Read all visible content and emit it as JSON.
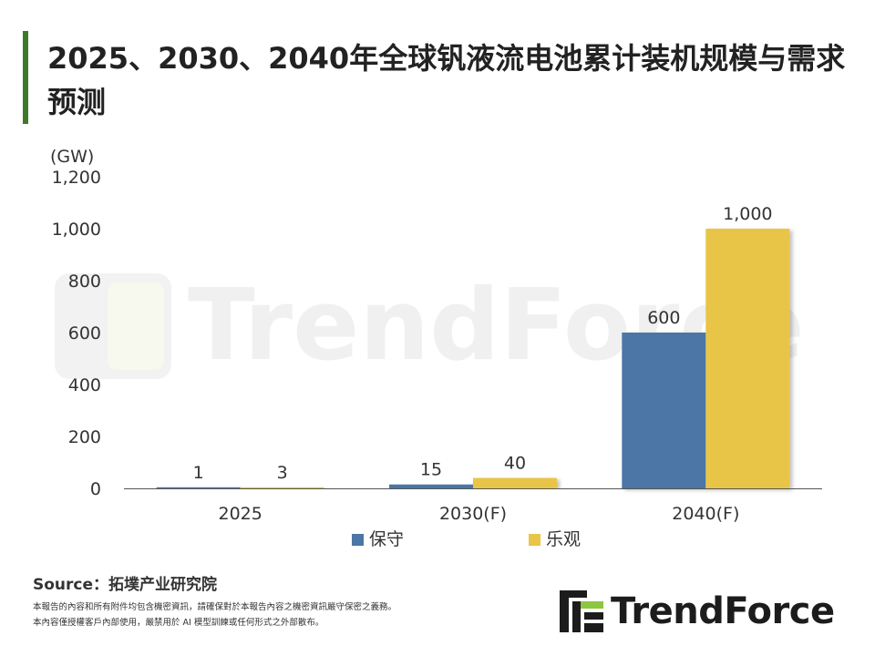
{
  "header": {
    "title": "2025、2030、2040年全球钒液流电池累计装机规模与需求预测"
  },
  "watermark": {
    "text": "TrendForce"
  },
  "colors": {
    "accent_bar": "#3f7a2b",
    "series_conservative": "#4c76a6",
    "series_optimistic": "#e8c547"
  },
  "chart_data": {
    "type": "bar",
    "title": "2025、2030、2040年全球钒液流电池累计装机规模与需求预测",
    "unit_label": "(GW)",
    "categories": [
      "2025",
      "2030(F)",
      "2040(F)"
    ],
    "series": [
      {
        "name": "保守",
        "color": "#4c76a6",
        "values": [
          1,
          15,
          600
        ],
        "labels": [
          "1",
          "15",
          "600"
        ]
      },
      {
        "name": "乐观",
        "color": "#e8c547",
        "values": [
          3,
          40,
          1000
        ],
        "labels": [
          "3",
          "40",
          "1,000"
        ]
      }
    ],
    "y_ticks": [
      0,
      200,
      400,
      600,
      800,
      1000,
      1200
    ],
    "y_tick_labels": [
      "0",
      "200",
      "400",
      "600",
      "800",
      "1,000",
      "1,200"
    ],
    "ylim": [
      0,
      1200
    ],
    "grid": false,
    "legend_position": "bottom"
  },
  "footer": {
    "source": "Source：拓墣产业研究院",
    "disclaimer_line1": "本報告的內容和所有附件均包含機密資訊，請確保對於本報告內容之機密資訊嚴守保密之義務。",
    "disclaimer_line2": "本內容僅授權客戶內部使用，嚴禁用於 AI 模型訓練或任何形式之外部散布。"
  },
  "logo": {
    "text": "TrendForce"
  }
}
